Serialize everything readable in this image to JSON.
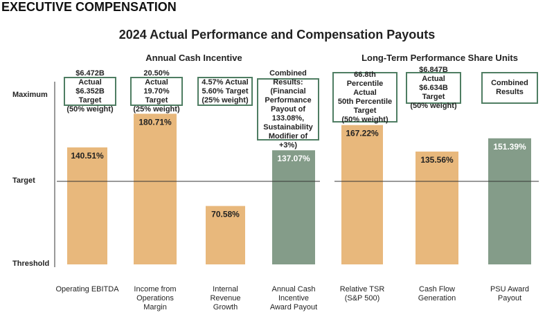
{
  "header": "EXECUTIVE COMPENSATION",
  "chart_data": {
    "type": "bar",
    "title": "2024 Actual Performance and Compensation Payouts",
    "groups": [
      {
        "label": "Annual Cash Incentive"
      },
      {
        "label": "Long-Term Performance Share Units"
      }
    ],
    "y_levels": [
      "Maximum",
      "Target",
      "Threshold"
    ],
    "categories": [
      "Operating EBITDA",
      "Income from\nOperations\nMargin",
      "Internal\nRevenue\nGrowth",
      "Annual Cash\nIncentive\nAward Payout",
      "Relative TSR\n(S&P 500)",
      "Cash Flow\nGeneration",
      "PSU Award\nPayout"
    ],
    "values": [
      140.51,
      180.71,
      70.58,
      137.07,
      167.22,
      135.56,
      151.39
    ],
    "data_labels": [
      "140.51%",
      "180.71%",
      "70.58%",
      "137.07%",
      "167.22%",
      "135.56%",
      "151.39%"
    ],
    "kinds": [
      "component",
      "component",
      "component",
      "combined",
      "component",
      "component",
      "combined"
    ],
    "annotations": [
      "$6.472B Actual\n$6.352B Target\n(50% weight)",
      "20.50% Actual\n19.70% Target\n(25% weight)",
      "4.57% Actual\n5.60% Target\n(25% weight)",
      "Combined Results:\n(Financial\nPerformance\nPayout of 133.08%,\nSustainability\nModifier of +3%)",
      "66.8th Percentile\nActual\n50th Percentile\nTarget\n(50% weight)",
      "$6.847B Actual\n$6.634B Target\n(50% weight)",
      "Combined\nResults"
    ],
    "colors": {
      "component": "#e8b87c",
      "combined": "#849c89",
      "box_border": "#4e7d62"
    }
  }
}
